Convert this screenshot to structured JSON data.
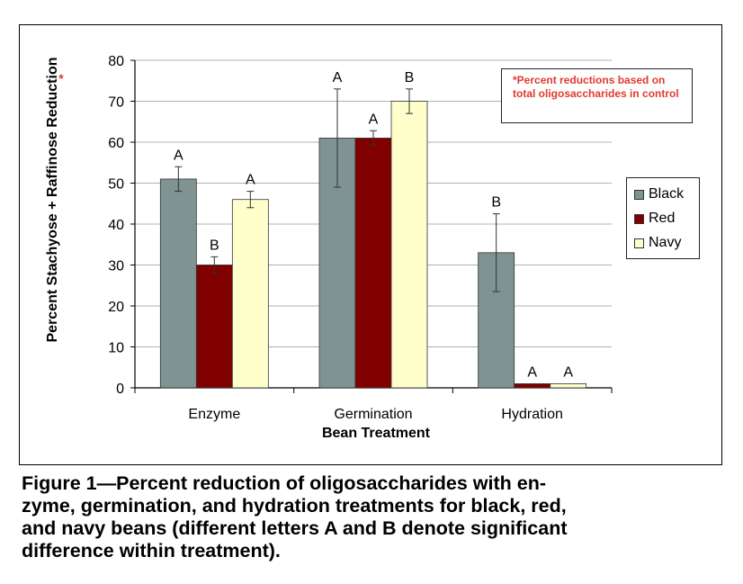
{
  "chart_data": {
    "type": "bar",
    "categories": [
      "Enzyme",
      "Germination",
      "Hydration"
    ],
    "xlabel": "Bean Treatment",
    "ylabel": "Percent Stachyose + Raffinose Reduction",
    "ylabel_marker": "*",
    "ylim": [
      0,
      80
    ],
    "yticks": [
      0,
      10,
      20,
      30,
      40,
      50,
      60,
      70,
      80
    ],
    "grid": true,
    "legend_position": "right",
    "series": [
      {
        "name": "Black",
        "color": "#7f9393",
        "values": [
          51,
          61,
          33
        ],
        "error": [
          3,
          12,
          9.5
        ],
        "letters": [
          "A",
          "A",
          "B"
        ]
      },
      {
        "name": "Red",
        "color": "#800000",
        "values": [
          30,
          61,
          1
        ],
        "error": [
          2,
          1.8,
          0
        ],
        "letters": [
          "B",
          "A",
          "A"
        ]
      },
      {
        "name": "Navy",
        "color": "#ffffcc",
        "values": [
          46,
          70,
          1
        ],
        "error": [
          2,
          3,
          0
        ],
        "letters": [
          "A",
          "B",
          "A"
        ]
      }
    ],
    "annotation": "*Percent reductions based on total oligosaccharides in control"
  },
  "caption": {
    "lines": [
      "Figure 1—Percent reduction of oligosaccharides with en-",
      "zyme, germination, and hydration treatments for black, red,",
      "and navy beans (different letters A and B denote significant",
      "difference within treatment)."
    ]
  }
}
